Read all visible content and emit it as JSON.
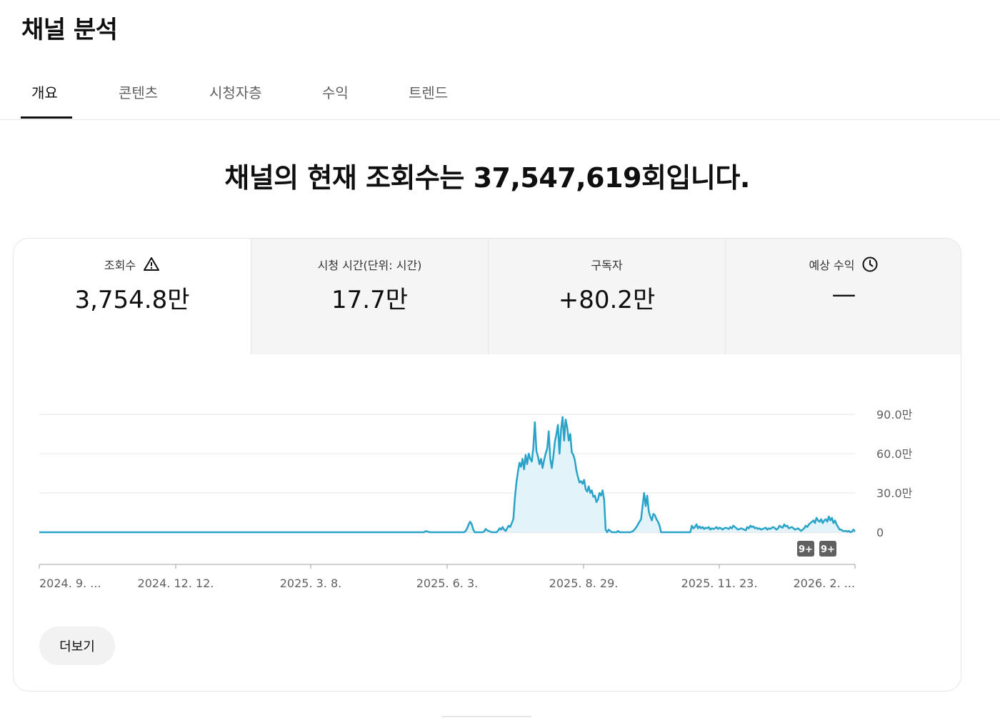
{
  "page": {
    "title": "채널 분석"
  },
  "tabs": [
    {
      "label": "개요",
      "active": true
    },
    {
      "label": "콘텐츠",
      "active": false
    },
    {
      "label": "시청자층",
      "active": false
    },
    {
      "label": "수익",
      "active": false
    },
    {
      "label": "트렌드",
      "active": false
    }
  ],
  "headline": "채널의 현재 조회수는 37,547,619회입니다.",
  "metrics": [
    {
      "label": "조회수",
      "value": "3,754.8만",
      "icon": "warning-icon",
      "active": true
    },
    {
      "label": "시청 시간(단위: 시간)",
      "value": "17.7만",
      "active": false
    },
    {
      "label": "구독자",
      "value": "+80.2만",
      "active": false
    },
    {
      "label": "예상 수익",
      "value": "—",
      "icon": "clock-icon",
      "active": false
    }
  ],
  "colors": {
    "line": "#2aa3c9",
    "fill": "#e3f3fa",
    "badge": "#606060",
    "grid": "#e5e5e5"
  },
  "chart_data": {
    "type": "area",
    "x_ticks": [
      "2024. 9. ...",
      "2024. 12. 12.",
      "2025. 3. 8.",
      "2025. 6. 3.",
      "2025. 8. 29.",
      "2025. 11. 23.",
      "2026. 2. ..."
    ],
    "y_ticks": [
      "90.0만",
      "60.0만",
      "30.0만",
      "0"
    ],
    "ylim": [
      0,
      900000
    ],
    "badges": [
      "9+",
      "9+"
    ],
    "values": [
      0,
      0,
      0,
      0,
      0,
      0,
      0,
      0,
      0,
      0,
      0,
      0,
      0,
      0,
      0,
      0,
      0,
      0,
      0,
      0,
      0,
      0,
      0,
      0,
      0,
      0,
      0,
      0,
      0,
      0,
      0,
      0,
      0,
      0,
      0,
      0,
      0,
      0,
      0,
      0,
      0,
      0,
      0,
      0,
      0,
      0,
      0,
      0,
      0,
      0,
      0,
      0,
      0,
      0,
      0,
      0,
      0,
      0,
      0,
      0,
      0,
      0,
      0,
      0,
      0,
      0,
      0,
      0,
      0,
      0,
      0,
      0,
      0,
      0,
      0,
      0,
      0,
      0,
      0,
      0,
      0,
      0,
      0,
      0,
      0,
      0,
      0,
      0,
      0,
      0,
      0,
      0,
      0,
      0,
      0,
      0,
      0,
      0,
      0,
      0,
      0,
      0,
      0,
      0,
      0,
      0,
      0,
      0,
      0,
      0,
      0,
      0,
      0,
      0,
      0,
      0,
      0,
      0,
      0,
      0,
      0,
      0,
      0,
      0,
      0,
      0,
      0,
      0,
      0,
      0,
      0,
      0,
      0,
      0,
      0,
      0,
      0,
      0,
      0,
      0,
      0,
      0,
      0,
      0,
      0,
      0,
      0,
      0,
      0,
      0,
      0,
      0,
      0,
      0,
      0,
      0,
      0,
      0,
      0,
      0,
      0,
      0,
      0,
      0,
      0,
      0,
      0,
      0,
      0,
      0,
      0,
      0,
      0,
      0,
      0,
      0,
      0,
      0,
      0,
      0,
      0,
      0,
      0,
      0,
      0,
      0,
      0,
      0,
      0,
      0,
      0,
      0,
      0,
      0,
      0,
      0,
      0,
      0,
      0,
      0,
      0,
      0,
      0,
      0,
      0,
      0,
      0,
      0,
      0,
      0,
      0,
      0,
      0,
      0,
      0,
      0,
      0,
      0,
      0,
      0,
      0,
      0,
      0,
      0,
      0,
      0,
      0,
      0,
      0,
      0,
      0,
      0,
      0,
      0,
      0,
      0,
      0,
      0,
      0,
      0,
      0,
      0,
      0,
      0,
      0,
      0,
      0,
      0,
      0,
      0,
      0,
      8000,
      6000,
      2000,
      0,
      0,
      0,
      0,
      0,
      0,
      0,
      0,
      0,
      0,
      0,
      0,
      0,
      0,
      0,
      0,
      0,
      0,
      0,
      0,
      0,
      0,
      0,
      10000,
      30000,
      60000,
      80000,
      60000,
      20000,
      0,
      0,
      0,
      0,
      0,
      0,
      5000,
      25000,
      15000,
      10000,
      5000,
      0,
      0,
      0,
      0,
      10000,
      30000,
      20000,
      40000,
      20000,
      10000,
      30000,
      50000,
      40000,
      70000,
      100000,
      260000,
      380000,
      460000,
      530000,
      500000,
      560000,
      480000,
      590000,
      520000,
      600000,
      560000,
      540000,
      650000,
      840000,
      620000,
      580000,
      520000,
      560000,
      490000,
      550000,
      600000,
      640000,
      770000,
      560000,
      490000,
      580000,
      690000,
      750000,
      820000,
      600000,
      780000,
      880000,
      700000,
      860000,
      800000,
      700000,
      750000,
      610000,
      590000,
      550000,
      470000,
      420000,
      380000,
      390000,
      370000,
      400000,
      330000,
      310000,
      350000,
      300000,
      320000,
      270000,
      280000,
      230000,
      250000,
      300000,
      280000,
      320000,
      250000,
      20000,
      0,
      20000,
      10000,
      0,
      0,
      0,
      0,
      10000,
      0,
      0,
      0,
      0,
      0,
      0,
      0,
      0,
      5000,
      10000,
      25000,
      40000,
      60000,
      80000,
      100000,
      200000,
      300000,
      200000,
      280000,
      160000,
      120000,
      90000,
      140000,
      130000,
      100000,
      80000,
      50000,
      0,
      0,
      0,
      0,
      0,
      0,
      0,
      0,
      0,
      0,
      0,
      0,
      0,
      0,
      0,
      0,
      0,
      0,
      0,
      0,
      50000,
      30000,
      40000,
      60000,
      30000,
      45000,
      30000,
      40000,
      25000,
      35000,
      30000,
      40000,
      20000,
      30000,
      25000,
      30000,
      40000,
      25000,
      35000,
      30000,
      20000,
      30000,
      35000,
      30000,
      25000,
      40000,
      30000,
      50000,
      40000,
      30000,
      20000,
      25000,
      30000,
      25000,
      20000,
      15000,
      40000,
      30000,
      50000,
      40000,
      45000,
      30000,
      35000,
      25000,
      30000,
      20000,
      25000,
      30000,
      35000,
      20000,
      30000,
      25000,
      35000,
      40000,
      30000,
      20000,
      30000,
      50000,
      40000,
      35000,
      60000,
      45000,
      50000,
      30000,
      35000,
      40000,
      30000,
      20000,
      25000,
      30000,
      20000,
      10000,
      20000,
      30000,
      50000,
      40000,
      60000,
      70000,
      80000,
      90000,
      70000,
      110000,
      90000,
      80000,
      100000,
      70000,
      90000,
      100000,
      80000,
      120000,
      90000,
      110000,
      70000,
      90000,
      60000,
      40000,
      20000,
      20000,
      10000,
      10000,
      10000,
      5000,
      10000,
      0,
      5000,
      20000,
      5000
    ]
  }
}
